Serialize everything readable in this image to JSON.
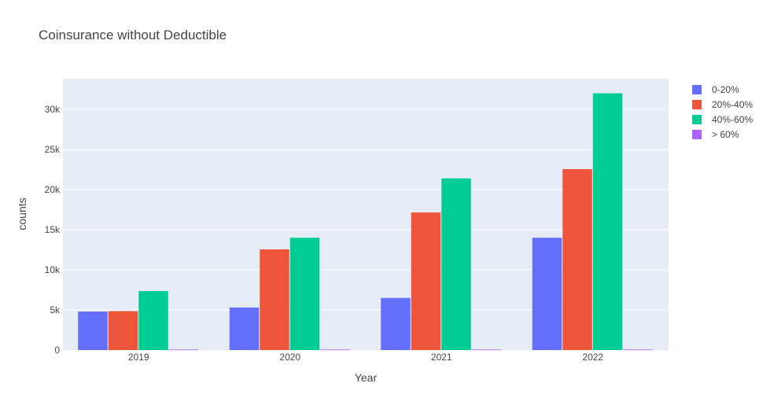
{
  "chart_data": {
    "type": "bar",
    "title": "Coinsurance without Deductible",
    "xlabel": "Year",
    "ylabel": "counts",
    "categories": [
      "2019",
      "2020",
      "2021",
      "2022"
    ],
    "series": [
      {
        "name": "0-20%",
        "color": "#636efa",
        "values": [
          4800,
          5300,
          6500,
          14000
        ]
      },
      {
        "name": "20%-40%",
        "color": "#EF553B",
        "values": [
          4850,
          12550,
          17150,
          22550
        ]
      },
      {
        "name": "40%-60%",
        "color": "#00cc96",
        "values": [
          7350,
          14000,
          21400,
          32000
        ]
      },
      {
        "name": "> 60%",
        "color": "#ab63fa",
        "values": [
          60,
          60,
          60,
          60
        ]
      }
    ],
    "ylim": [
      0,
      32000
    ],
    "yticks": [
      0,
      5000,
      10000,
      15000,
      20000,
      25000,
      30000
    ],
    "ytick_labels": [
      "0",
      "5k",
      "10k",
      "15k",
      "20k",
      "25k",
      "30k"
    ],
    "grid": true,
    "legend_position": "right"
  },
  "colors": {
    "plot_background": "#e5ecf6",
    "grid": "#ffffff",
    "text": "#444444"
  }
}
